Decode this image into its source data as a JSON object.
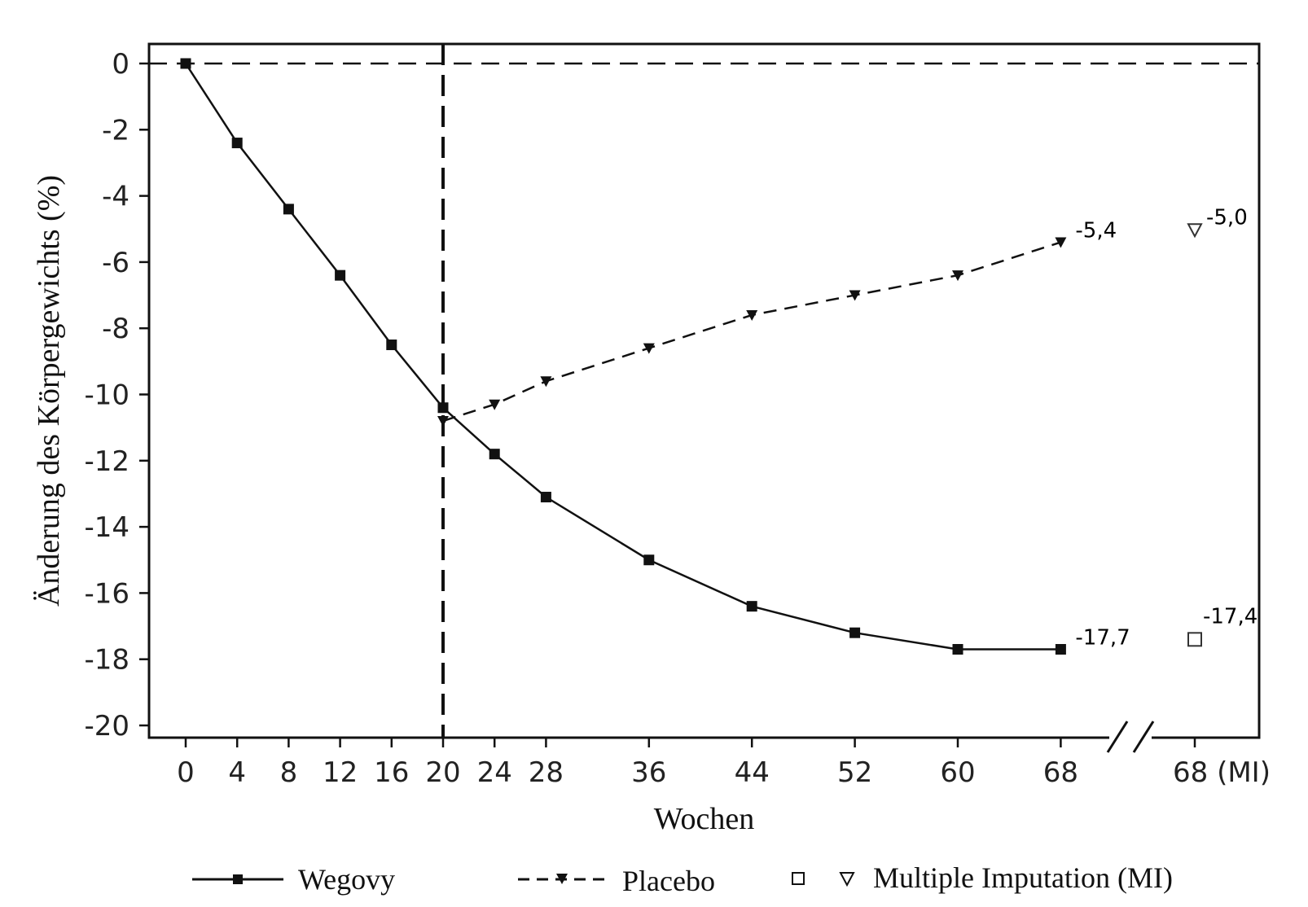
{
  "chart_data": {
    "type": "line",
    "xlabel": "Wochen",
    "ylabel": "Änderung des Körpergewichts (%)",
    "ylim": [
      -20,
      0
    ],
    "yticks": [
      0,
      -2,
      -4,
      -6,
      -8,
      -10,
      -12,
      -14,
      -16,
      -18,
      -20
    ],
    "xticks": [
      "0",
      "4",
      "8",
      "12",
      "16",
      "20",
      "24",
      "28",
      "36",
      "44",
      "52",
      "60",
      "68",
      "68 (MI)"
    ],
    "grid": false,
    "axis_break": "between 68 and 68 (MI)",
    "series": [
      {
        "name": "Wegovy",
        "line_style": "solid",
        "marker": "filled-square",
        "x": [
          0,
          4,
          8,
          12,
          16,
          20,
          24,
          28,
          36,
          44,
          52,
          60,
          68
        ],
        "y": [
          0,
          -2.4,
          -4.4,
          -6.4,
          -8.5,
          -10.4,
          -11.8,
          -13.1,
          -15.0,
          -16.4,
          -17.2,
          -17.7,
          -17.7
        ],
        "end_label": "-17,7",
        "mi_value": -17.4,
        "mi_label": "-17,4",
        "mi_marker": "open-square"
      },
      {
        "name": "Placebo",
        "line_style": "dashed",
        "marker": "filled-triangle-down",
        "x": [
          20,
          24,
          28,
          36,
          44,
          52,
          60,
          68
        ],
        "y": [
          -10.8,
          -10.3,
          -9.6,
          -8.6,
          -7.6,
          -7.0,
          -6.4,
          -5.4
        ],
        "end_label": "-5,4",
        "mi_value": -5.0,
        "mi_label": "-5,0",
        "mi_marker": "open-triangle-down"
      }
    ],
    "reference_lines": {
      "horizontal_y": 0,
      "vertical_x": 20
    },
    "legend": {
      "placement": "bottom",
      "items": [
        {
          "label": "Wegovy",
          "symbol": "solid-line-square"
        },
        {
          "label": "Placebo",
          "symbol": "dashed-line-triangle"
        },
        {
          "label": "Multiple Imputation (MI)",
          "symbol": "open-square-and-open-triangle"
        }
      ]
    }
  }
}
